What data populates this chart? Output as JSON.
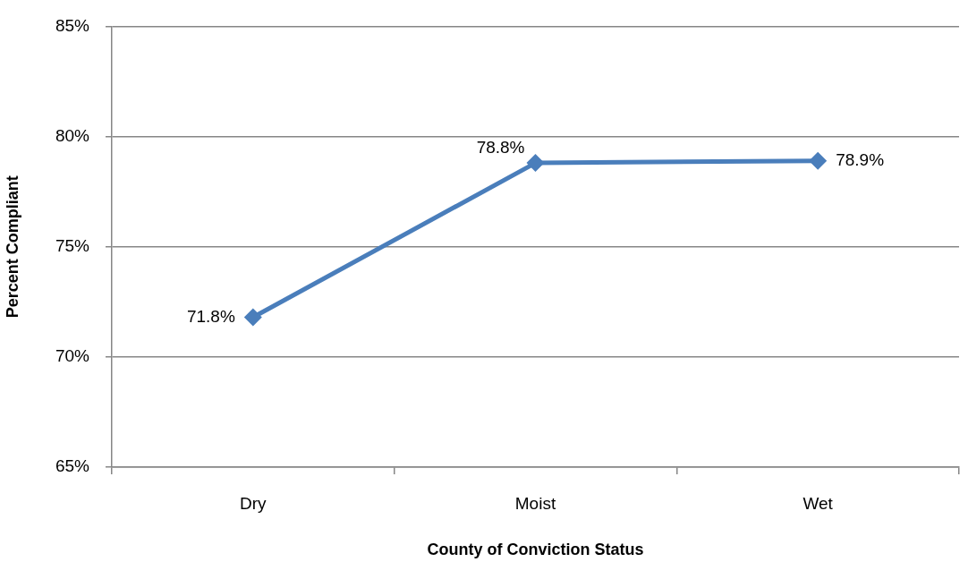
{
  "chart_data": {
    "type": "line",
    "xlabel": "County of Conviction Status",
    "ylabel": "Percent Compliant",
    "categories": [
      "Dry",
      "Moist",
      "Wet"
    ],
    "values": [
      71.8,
      78.8,
      78.9
    ],
    "color": "#4a7ebb",
    "value_labels": [
      "71.8%",
      "78.8%",
      "78.9%"
    ],
    "ylim": [
      65,
      85
    ],
    "yticks": [
      {
        "value": 65,
        "label": "65%"
      },
      {
        "value": 70,
        "label": "70%"
      },
      {
        "value": 75,
        "label": "75%"
      },
      {
        "value": 80,
        "label": "80%"
      },
      {
        "value": 85,
        "label": "85%"
      }
    ],
    "grid": "y",
    "marker": "diamond",
    "line_style": "solid"
  }
}
